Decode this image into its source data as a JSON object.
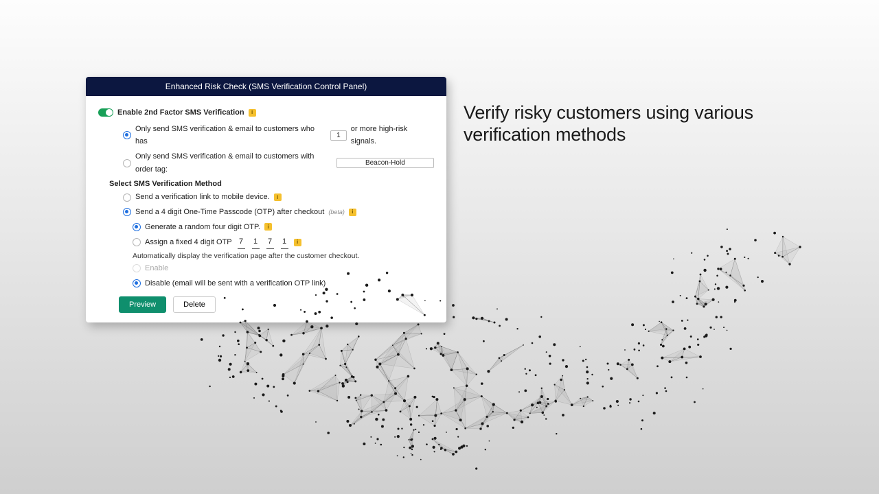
{
  "panel": {
    "title": "Enhanced Risk Check (SMS Verification Control Panel)",
    "enable_label": "Enable 2nd Factor SMS Verification",
    "option_risk_prefix": "Only send SMS verification & email to customers who has",
    "option_risk_count": "1",
    "option_risk_suffix": "or more high-risk signals.",
    "option_tag_prefix": "Only send SMS verification & email to customers with order tag:",
    "option_tag_value": "Beacon-Hold",
    "method_title": "Select SMS Verification Method",
    "method_link": "Send a verification link to mobile device.",
    "method_otp": "Send a 4 digit One-Time Passcode (OTP) after checkout",
    "method_otp_beta": "(beta)",
    "otp_random": "Generate a random four digit OTP.",
    "otp_fixed": "Assign a fixed 4 digit OTP",
    "otp_digits": [
      "7",
      "1",
      "7",
      "1"
    ],
    "auto_note": "Automatically display the verification page after the customer checkout.",
    "auto_enable": "Enable",
    "auto_disable": "Disable (email will be sent with a verification OTP link)",
    "preview_btn": "Preview",
    "delete_btn": "Delete"
  },
  "headline": "Verify risky customers using various verification methods",
  "colors": {
    "header_bg": "#0c1740",
    "toggle_on": "#18a058",
    "radio_active": "#1f6fe0",
    "info_badge": "#f5c02e",
    "primary_btn": "#0f8f6d"
  }
}
